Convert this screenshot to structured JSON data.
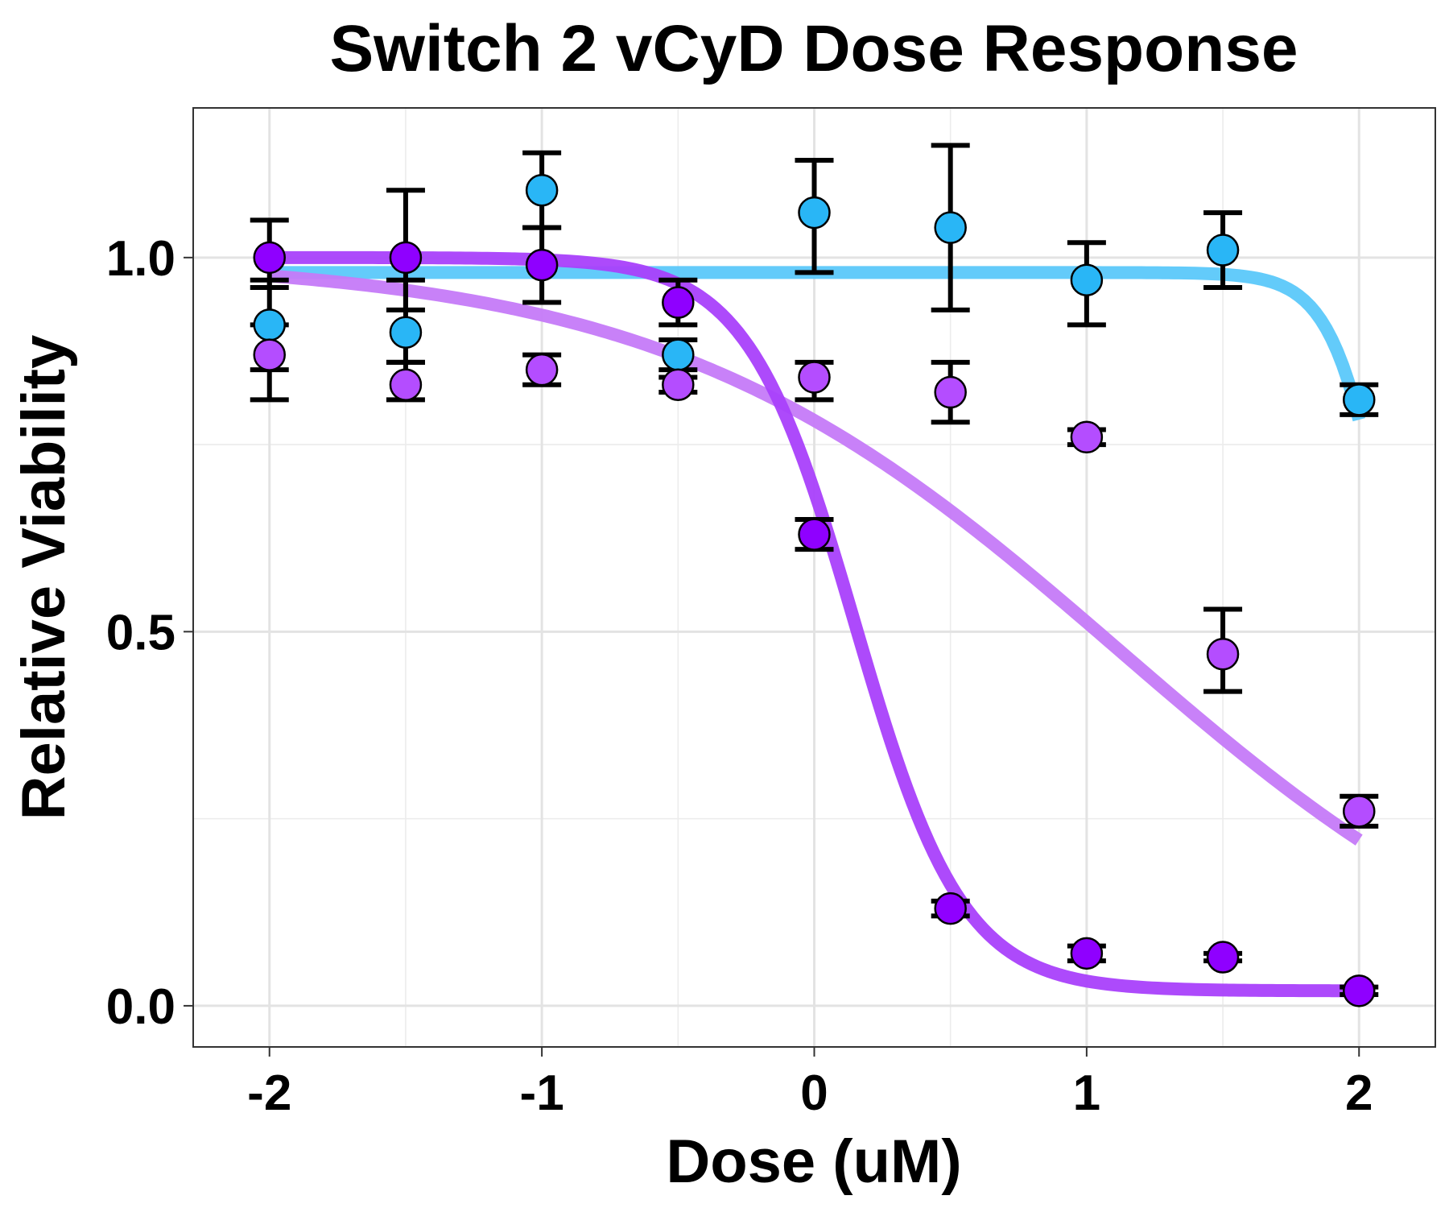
{
  "chart_data": {
    "type": "scatter",
    "title": "Switch 2 vCyD Dose Response",
    "xlabel": "Dose (uM)",
    "ylabel": "Relative Viability",
    "xlim": [
      -2.28,
      2.28
    ],
    "ylim": [
      -0.055,
      1.2
    ],
    "x_ticks": [
      -2,
      -1,
      0,
      1,
      2
    ],
    "x_tick_labels": [
      "-2",
      "-1",
      "0",
      "1",
      "2"
    ],
    "y_ticks": [
      0.0,
      0.5,
      1.0
    ],
    "y_tick_labels": [
      "0.0",
      "0.5",
      "1.0"
    ],
    "grid": true,
    "legend": "none",
    "series": [
      {
        "color": "#29b6f6",
        "curve_color": "#5bc8fa",
        "x": [
          -2,
          -1.5,
          -1,
          -0.5,
          0,
          0.5,
          1,
          1.5,
          2
        ],
        "y": [
          0.91,
          0.9,
          1.09,
          0.87,
          1.06,
          1.04,
          0.97,
          1.01,
          0.81
        ],
        "error_low": [
          0.85,
          0.86,
          1.04,
          0.85,
          0.98,
          0.93,
          0.91,
          0.96,
          0.79
        ],
        "error_high": [
          0.97,
          0.97,
          1.14,
          0.89,
          1.13,
          1.15,
          1.02,
          1.06,
          0.83
        ],
        "fit": {
          "top": 0.98,
          "bottom": 0.0,
          "log_ic50": 2.15,
          "hill": 4.0
        }
      },
      {
        "color": "#b44dff",
        "curve_color": "#c57af8",
        "x": [
          -2,
          -1.5,
          -1,
          -0.5,
          0,
          0.5,
          1,
          1.5,
          2
        ],
        "y": [
          0.87,
          0.83,
          0.85,
          0.83,
          0.84,
          0.82,
          0.76,
          0.47,
          0.26
        ],
        "error_low": [
          0.81,
          0.81,
          0.83,
          0.82,
          0.81,
          0.78,
          0.75,
          0.42,
          0.24
        ],
        "error_high": [
          0.91,
          0.86,
          0.87,
          0.84,
          0.86,
          0.86,
          0.77,
          0.53,
          0.28
        ],
        "fit": {
          "top": 1.0,
          "bottom": -0.05,
          "log_ic50": 1.12,
          "hill": 0.52
        }
      },
      {
        "color": "#8f00ff",
        "curve_color": "#a940fb",
        "x": [
          -2,
          -1.5,
          -1,
          -0.5,
          0,
          0.5,
          1,
          1.5,
          2
        ],
        "y": [
          1.0,
          1.0,
          0.99,
          0.94,
          0.63,
          0.13,
          0.07,
          0.065,
          0.02
        ],
        "error_low": [
          0.96,
          0.93,
          0.94,
          0.91,
          0.61,
          0.12,
          0.06,
          0.06,
          0.015
        ],
        "error_high": [
          1.05,
          1.09,
          1.04,
          0.97,
          0.65,
          0.14,
          0.08,
          0.07,
          0.025
        ],
        "fit": {
          "top": 1.0,
          "bottom": 0.02,
          "log_ic50": 0.15,
          "hill": 2.2
        }
      }
    ]
  }
}
